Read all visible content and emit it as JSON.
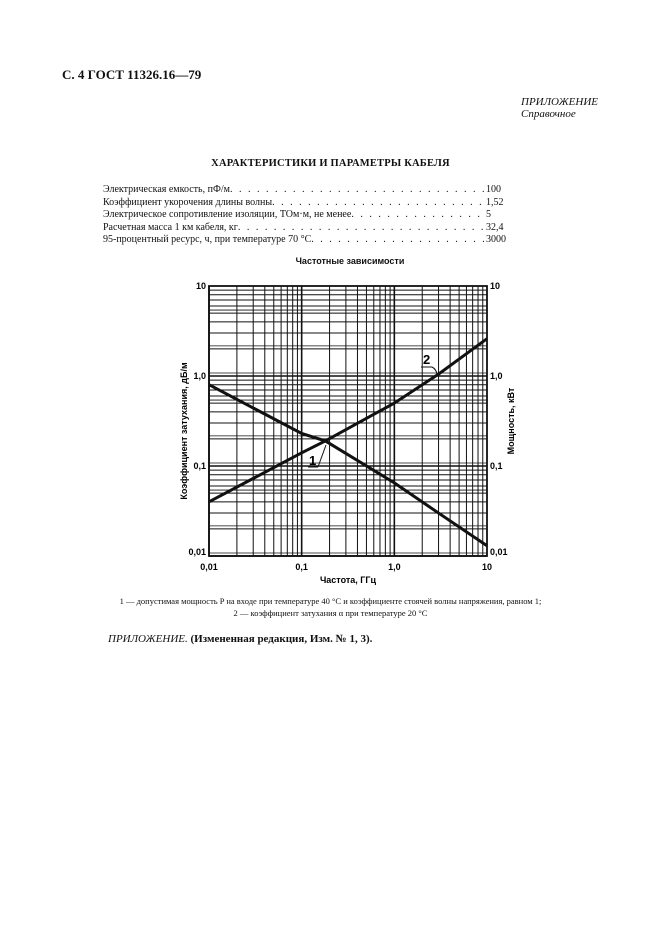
{
  "header": {
    "page_ref": "С. 4 ГОСТ 11326.16—79"
  },
  "appendix": {
    "label": "ПРИЛОЖЕНИЕ",
    "type": "Справочное"
  },
  "section_title": "ХАРАКТЕРИСТИКИ И ПАРАМЕТРЫ КАБЕЛЯ",
  "specs": [
    {
      "label": "Электрическая емкость, пФ/м",
      "value": "100"
    },
    {
      "label": "Коэффициент укорочения длины волны",
      "value": "1,52"
    },
    {
      "label": "Электрическое сопротивление изоляции, ТОм·м, не менее",
      "value": "5"
    },
    {
      "label": "Расчетная масса 1 км кабеля, кг",
      "value": "32,4"
    },
    {
      "label": "95-процентный ресурс, ч, при температуре 70 °С",
      "value": "3000"
    }
  ],
  "chart_data": {
    "type": "line",
    "title": "Частотные зависимости",
    "xlabel": "Частота, ГГц",
    "ylabel_left": "Коэффициент затухания, дБ/м",
    "ylabel_right": "Мощность, кВт",
    "x_scale": "log",
    "y_scale": "log",
    "xlim": [
      0.01,
      10
    ],
    "ylim": [
      0.01,
      10
    ],
    "x_ticks": [
      "0,01",
      "0,1",
      "1,0",
      "10"
    ],
    "y_ticks": [
      "0,01",
      "0,1",
      "1,0",
      "10"
    ],
    "grid": true,
    "series": [
      {
        "name": "1",
        "x": [
          0.01,
          0.1,
          0.18,
          1,
          3,
          10
        ],
        "y": [
          0.8,
          0.23,
          0.19,
          0.065,
          0.03,
          0.013
        ]
      },
      {
        "name": "2",
        "x": [
          0.01,
          0.1,
          0.18,
          1,
          3,
          10
        ],
        "y": [
          0.04,
          0.14,
          0.19,
          0.5,
          1.05,
          2.6
        ]
      }
    ]
  },
  "caption": {
    "line1": "1 — допустимая мощность P на входе при температуре 40 °С и коэффициенте стоячей волны напряжения, равном 1;",
    "line2": "2 — коэффициент затухания α при температуре 20 °С"
  },
  "footnote": {
    "italic": "ПРИЛОЖЕНИЕ.",
    "bold": " (Измененная редакция, Изм. № 1, 3)."
  }
}
